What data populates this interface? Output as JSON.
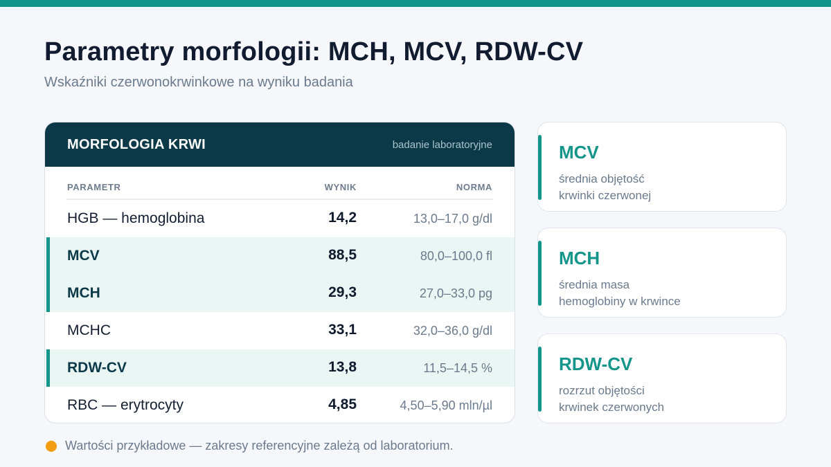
{
  "header": {
    "title": "Parametry morfologii: MCH, MCV, RDW-CV",
    "subtitle": "Wskaźniki czerwonokrwinkowe na wyniku badania"
  },
  "table": {
    "title": "MORFOLOGIA KRWI",
    "note": "badanie laboratoryjne",
    "columns": {
      "param": "PARAMETR",
      "result": "WYNIK",
      "norm": "NORMA"
    },
    "rows": [
      {
        "param": "HGB — hemoglobina",
        "result": "14,2",
        "norm": "13,0–17,0 g/dl",
        "highlighted": false
      },
      {
        "param": "MCV",
        "result": "88,5",
        "norm": "80,0–100,0 fl",
        "highlighted": true
      },
      {
        "param": "MCH",
        "result": "29,3",
        "norm": "27,0–33,0 pg",
        "highlighted": true
      },
      {
        "param": "MCHC",
        "result": "33,1",
        "norm": "32,0–36,0 g/dl",
        "highlighted": false
      },
      {
        "param": "RDW-CV",
        "result": "13,8",
        "norm": "11,5–14,5 %",
        "highlighted": true
      },
      {
        "param": "RBC — erytrocyty",
        "result": "4,85",
        "norm": "4,50–5,90 mln/µl",
        "highlighted": false
      }
    ]
  },
  "cards": [
    {
      "name": "MCV",
      "line1": "średnia objętość",
      "line2": "krwinki czerwonej"
    },
    {
      "name": "MCH",
      "line1": "średnia masa",
      "line2": "hemoglobiny w krwince"
    },
    {
      "name": "RDW-CV",
      "line1": "rozrzut objętości",
      "line2": "krwinek czerwonych"
    }
  ],
  "footnote": "Wartości przykładowe — zakresy referencyjne zależą od laboratorium.",
  "colors": {
    "accent": "#14958a",
    "header_bg": "#0b3947",
    "highlight_bg": "#e9f6f3",
    "footnote_dot": "#f29c12"
  }
}
